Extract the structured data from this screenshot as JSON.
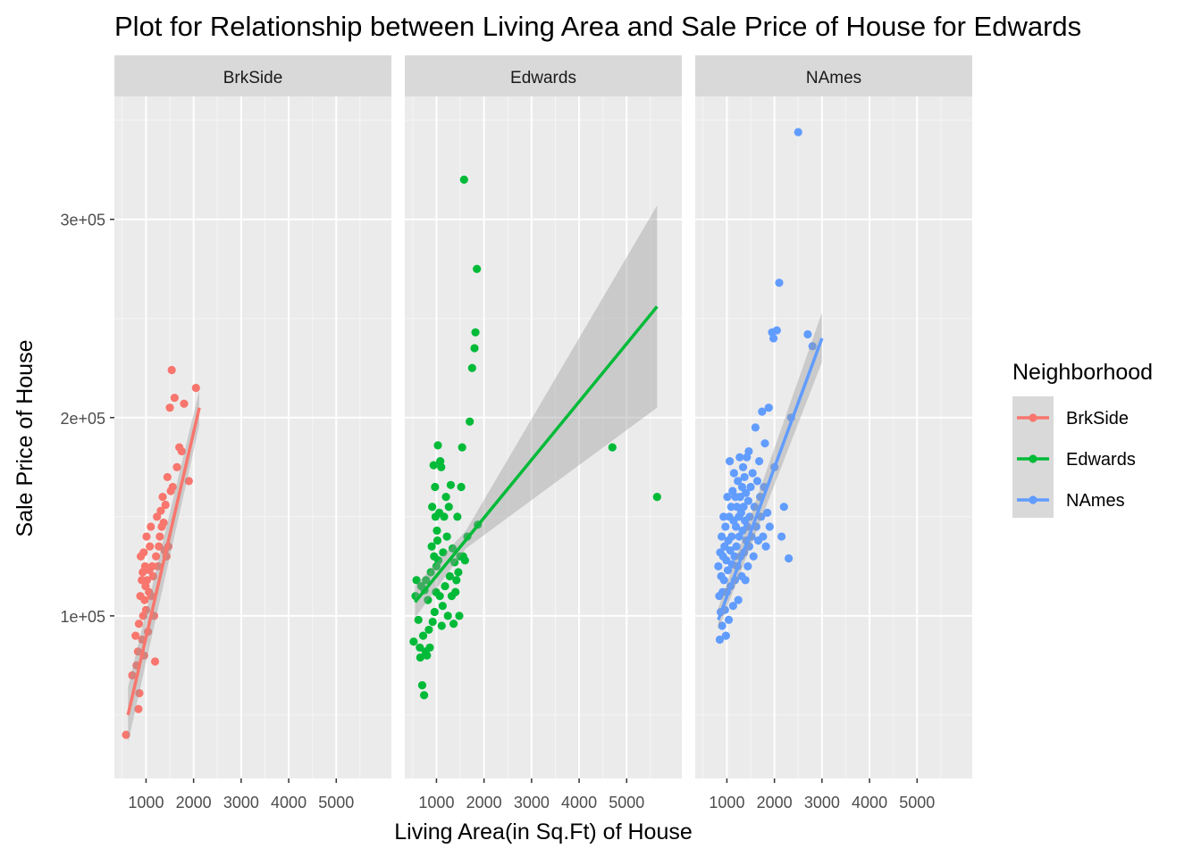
{
  "chart_data": {
    "type": "scatter",
    "title": "Plot for   Relationship between Living Area and Sale Price of House for Edwards",
    "xlabel": "Living Area(in Sq.Ft) of House",
    "ylabel": "Sale Price of House",
    "xlim": [
      334,
      6160
    ],
    "ylim": [
      18000,
      362000
    ],
    "x_ticks": [
      1000,
      2000,
      3000,
      4000,
      5000
    ],
    "x_tick_labels": [
      "1000",
      "2000",
      "3000",
      "4000",
      "5000"
    ],
    "y_ticks": [
      100000,
      200000,
      300000
    ],
    "y_tick_labels": [
      "1e+05",
      "2e+05",
      "3e+05"
    ],
    "grid": true,
    "legend_title": "Neighborhood",
    "legend_position": "right",
    "panels": [
      "BrkSide",
      "Edwards",
      "NAmes"
    ],
    "series": [
      {
        "name": "BrkSide",
        "color": "#F8766D",
        "trend": {
          "x": [
            620,
            2120
          ],
          "y": [
            50000,
            205000
          ],
          "ci_lower_start": 36000,
          "ci_upper_start": 64000,
          "ci_lower_end": 196000,
          "ci_upper_end": 214000
        },
        "points": [
          [
            580,
            40000
          ],
          [
            710,
            70000
          ],
          [
            780,
            90000
          ],
          [
            800,
            75000
          ],
          [
            830,
            82000
          ],
          [
            840,
            53000
          ],
          [
            850,
            96000
          ],
          [
            860,
            61000
          ],
          [
            880,
            110000
          ],
          [
            890,
            130000
          ],
          [
            910,
            118000
          ],
          [
            920,
            88000
          ],
          [
            930,
            122000
          ],
          [
            940,
            100000
          ],
          [
            950,
            132000
          ],
          [
            960,
            80000
          ],
          [
            970,
            108000
          ],
          [
            980,
            125000
          ],
          [
            990,
            115000
          ],
          [
            1000,
            103000
          ],
          [
            1010,
            140000
          ],
          [
            1020,
            118000
          ],
          [
            1040,
            92000
          ],
          [
            1060,
            112000
          ],
          [
            1070,
            123000
          ],
          [
            1080,
            135000
          ],
          [
            1100,
            145000
          ],
          [
            1110,
            110000
          ],
          [
            1130,
            125000
          ],
          [
            1150,
            120000
          ],
          [
            1170,
            100000
          ],
          [
            1190,
            77000
          ],
          [
            1210,
            130000
          ],
          [
            1230,
            150000
          ],
          [
            1250,
            125000
          ],
          [
            1270,
            135000
          ],
          [
            1290,
            140000
          ],
          [
            1310,
            153000
          ],
          [
            1330,
            145000
          ],
          [
            1350,
            160000
          ],
          [
            1370,
            147000
          ],
          [
            1390,
            133000
          ],
          [
            1410,
            156000
          ],
          [
            1430,
            130000
          ],
          [
            1450,
            170000
          ],
          [
            1470,
            135000
          ],
          [
            1500,
            205000
          ],
          [
            1520,
            163000
          ],
          [
            1540,
            224000
          ],
          [
            1560,
            165000
          ],
          [
            1600,
            210000
          ],
          [
            1650,
            175000
          ],
          [
            1700,
            185000
          ],
          [
            1750,
            183000
          ],
          [
            1800,
            207000
          ],
          [
            1900,
            168000
          ],
          [
            2050,
            215000
          ]
        ]
      },
      {
        "name": "Edwards",
        "color": "#00BA38",
        "trend": {
          "x": [
            550,
            5640
          ],
          "y": [
            107000,
            256000
          ],
          "ci_lower_start": 99000,
          "ci_upper_start": 115000,
          "ci_mid_x": 1620,
          "ci_lower_mid": 134000,
          "ci_upper_mid": 143000,
          "ci_lower_end": 205000,
          "ci_upper_end": 307000
        },
        "points": [
          [
            520,
            87000
          ],
          [
            560,
            110000
          ],
          [
            580,
            118000
          ],
          [
            620,
            98000
          ],
          [
            650,
            84000
          ],
          [
            660,
            79000
          ],
          [
            680,
            115000
          ],
          [
            700,
            65000
          ],
          [
            720,
            90000
          ],
          [
            740,
            60000
          ],
          [
            750,
            113000
          ],
          [
            770,
            82000
          ],
          [
            780,
            118000
          ],
          [
            800,
            80000
          ],
          [
            820,
            108000
          ],
          [
            840,
            93000
          ],
          [
            860,
            84000
          ],
          [
            880,
            122000
          ],
          [
            900,
            135000
          ],
          [
            910,
            155000
          ],
          [
            920,
            97000
          ],
          [
            940,
            176000
          ],
          [
            950,
            130000
          ],
          [
            960,
            102000
          ],
          [
            970,
            165000
          ],
          [
            980,
            150000
          ],
          [
            990,
            112000
          ],
          [
            1000,
            125000
          ],
          [
            1010,
            143000
          ],
          [
            1020,
            138000
          ],
          [
            1030,
            186000
          ],
          [
            1040,
            128000
          ],
          [
            1060,
            152000
          ],
          [
            1070,
            110000
          ],
          [
            1080,
            178000
          ],
          [
            1100,
            175000
          ],
          [
            1110,
            95000
          ],
          [
            1130,
            105000
          ],
          [
            1140,
            132000
          ],
          [
            1160,
            150000
          ],
          [
            1180,
            115000
          ],
          [
            1200,
            160000
          ],
          [
            1220,
            140000
          ],
          [
            1240,
            100000
          ],
          [
            1260,
            155000
          ],
          [
            1280,
            120000
          ],
          [
            1300,
            166000
          ],
          [
            1320,
            110000
          ],
          [
            1340,
            134000
          ],
          [
            1360,
            96000
          ],
          [
            1380,
            127000
          ],
          [
            1400,
            112000
          ],
          [
            1420,
            118000
          ],
          [
            1440,
            150000
          ],
          [
            1460,
            122000
          ],
          [
            1480,
            100000
          ],
          [
            1500,
            130000
          ],
          [
            1520,
            165000
          ],
          [
            1540,
            185000
          ],
          [
            1560,
            130000
          ],
          [
            1580,
            320000
          ],
          [
            1600,
            128000
          ],
          [
            1650,
            140000
          ],
          [
            1700,
            198000
          ],
          [
            1750,
            225000
          ],
          [
            1800,
            235000
          ],
          [
            1820,
            243000
          ],
          [
            1850,
            275000
          ],
          [
            1870,
            146000
          ],
          [
            4700,
            185000
          ],
          [
            5640,
            160000
          ]
        ]
      },
      {
        "name": "NAmes",
        "color": "#619CFF",
        "trend": {
          "x": [
            820,
            3000
          ],
          "y": [
            98000,
            240000
          ],
          "ci_lower_start": 93000,
          "ci_upper_start": 104000,
          "ci_lower_end": 228000,
          "ci_upper_end": 253000
        },
        "points": [
          [
            820,
            125000
          ],
          [
            840,
            110000
          ],
          [
            850,
            88000
          ],
          [
            860,
            132000
          ],
          [
            870,
            102000
          ],
          [
            880,
            120000
          ],
          [
            890,
            140000
          ],
          [
            900,
            95000
          ],
          [
            910,
            112000
          ],
          [
            920,
            130000
          ],
          [
            930,
            150000
          ],
          [
            940,
            118000
          ],
          [
            950,
            135000
          ],
          [
            960,
            103000
          ],
          [
            970,
            145000
          ],
          [
            980,
            90000
          ],
          [
            990,
            128000
          ],
          [
            1000,
            112000
          ],
          [
            1010,
            160000
          ],
          [
            1020,
            123000
          ],
          [
            1030,
            138000
          ],
          [
            1040,
            98000
          ],
          [
            1050,
            150000
          ],
          [
            1060,
            178000
          ],
          [
            1070,
            133000
          ],
          [
            1080,
            115000
          ],
          [
            1090,
            155000
          ],
          [
            1100,
            140000
          ],
          [
            1110,
            126000
          ],
          [
            1120,
            163000
          ],
          [
            1130,
            105000
          ],
          [
            1140,
            148000
          ],
          [
            1150,
            172000
          ],
          [
            1160,
            130000
          ],
          [
            1170,
            118000
          ],
          [
            1180,
            160000
          ],
          [
            1190,
            145000
          ],
          [
            1200,
            135000
          ],
          [
            1210,
            155000
          ],
          [
            1220,
            125000
          ],
          [
            1230,
            168000
          ],
          [
            1240,
            108000
          ],
          [
            1250,
            150000
          ],
          [
            1260,
            140000
          ],
          [
            1270,
            180000
          ],
          [
            1280,
            160000
          ],
          [
            1290,
            130000
          ],
          [
            1300,
            152000
          ],
          [
            1310,
            120000
          ],
          [
            1320,
            165000
          ],
          [
            1330,
            143000
          ],
          [
            1340,
            175000
          ],
          [
            1350,
            155000
          ],
          [
            1360,
            132000
          ],
          [
            1370,
            170000
          ],
          [
            1380,
            148000
          ],
          [
            1390,
            118000
          ],
          [
            1400,
            162000
          ],
          [
            1410,
            138000
          ],
          [
            1420,
            180000
          ],
          [
            1430,
            145000
          ],
          [
            1440,
            125000
          ],
          [
            1450,
            158000
          ],
          [
            1460,
            183000
          ],
          [
            1470,
            135000
          ],
          [
            1480,
            150000
          ],
          [
            1500,
            165000
          ],
          [
            1520,
            140000
          ],
          [
            1540,
            172000
          ],
          [
            1560,
            130000
          ],
          [
            1580,
            155000
          ],
          [
            1600,
            195000
          ],
          [
            1620,
            145000
          ],
          [
            1640,
            168000
          ],
          [
            1660,
            138000
          ],
          [
            1680,
            178000
          ],
          [
            1700,
            160000
          ],
          [
            1720,
            150000
          ],
          [
            1740,
            203000
          ],
          [
            1760,
            140000
          ],
          [
            1780,
            165000
          ],
          [
            1800,
            187000
          ],
          [
            1820,
            135000
          ],
          [
            1850,
            152000
          ],
          [
            1880,
            205000
          ],
          [
            1900,
            145000
          ],
          [
            1950,
            243000
          ],
          [
            1980,
            240000
          ],
          [
            2000,
            175000
          ],
          [
            2050,
            244000
          ],
          [
            2100,
            268000
          ],
          [
            2150,
            140000
          ],
          [
            2200,
            155000
          ],
          [
            2300,
            129000
          ],
          [
            2350,
            200000
          ],
          [
            2500,
            344000
          ],
          [
            2700,
            242000
          ],
          [
            2800,
            236000
          ]
        ]
      }
    ]
  }
}
